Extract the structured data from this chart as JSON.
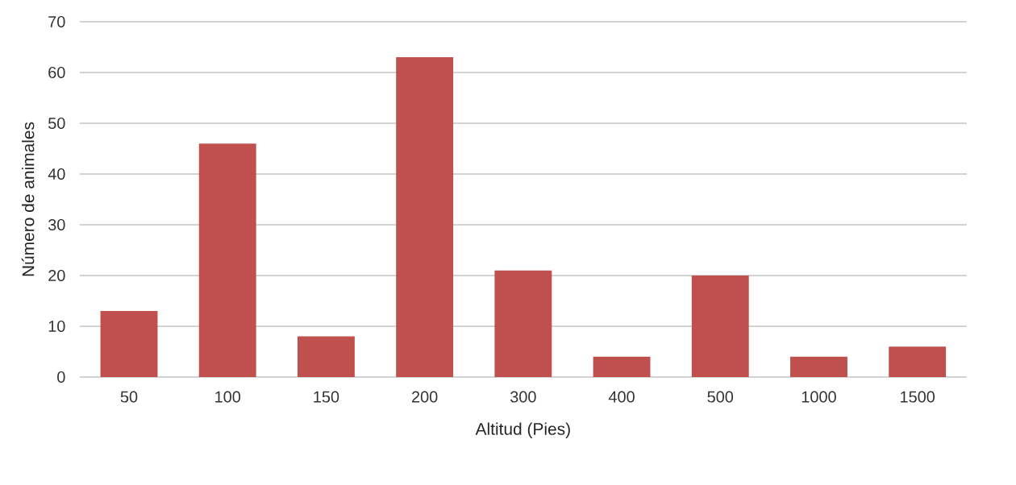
{
  "chart_data": {
    "type": "bar",
    "xlabel": "Altitud (Pies)",
    "ylabel": "Número de animales",
    "categories": [
      "50",
      "100",
      "150",
      "200",
      "300",
      "400",
      "500",
      "1000",
      "1500"
    ],
    "values": [
      13,
      46,
      8,
      63,
      21,
      4,
      20,
      4,
      6
    ],
    "color": "#c0504d",
    "ylim": [
      0,
      70
    ],
    "yticks": [
      0,
      10,
      20,
      30,
      40,
      50,
      60,
      70
    ],
    "grid": "y"
  }
}
